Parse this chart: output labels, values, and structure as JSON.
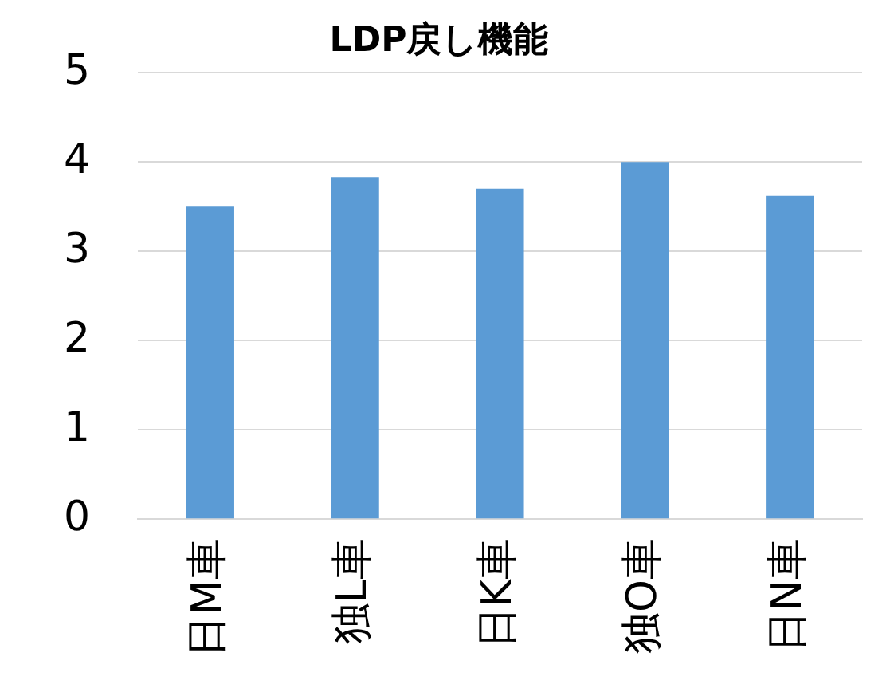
{
  "chart_data": {
    "type": "bar",
    "title": "LDP戻し機能",
    "categories": [
      "日M車",
      "独L車",
      "日K車",
      "独O車",
      "日N車"
    ],
    "values": [
      3.5,
      3.83,
      3.7,
      4.0,
      3.62
    ],
    "color": "#5b9bd5",
    "ylim": [
      0,
      5
    ],
    "yticks": [
      0,
      1,
      2,
      3,
      4,
      5
    ],
    "grid": "y",
    "legend": false
  }
}
